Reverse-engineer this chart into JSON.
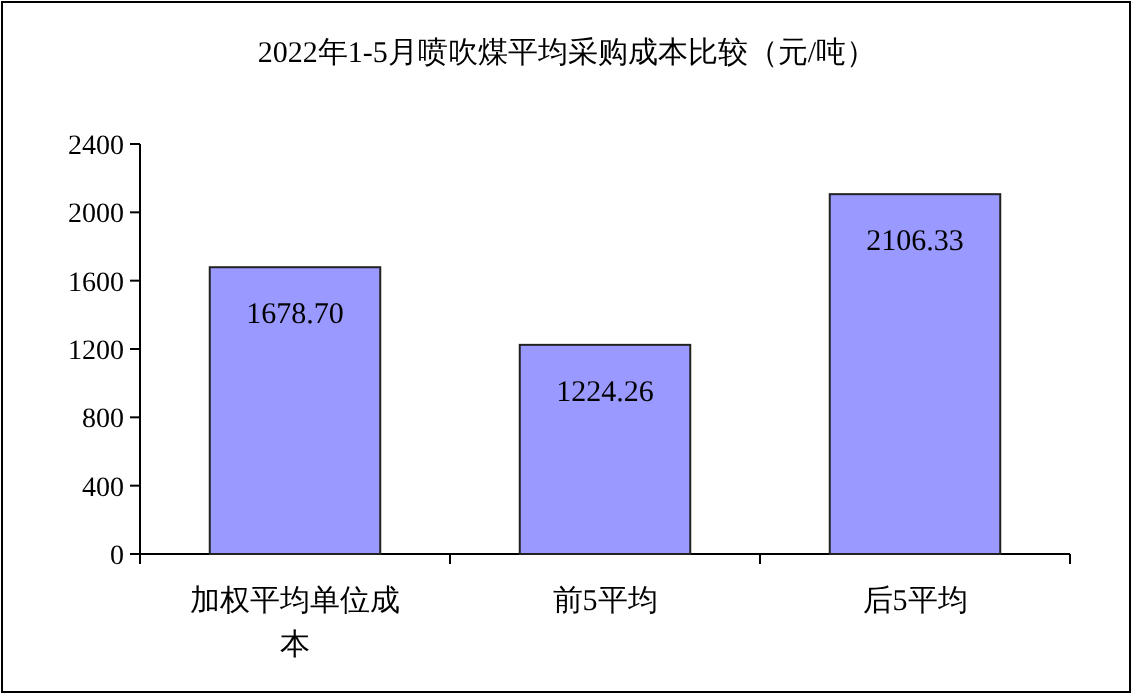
{
  "chart_data": {
    "type": "bar",
    "title": "2022年1-5月喷吹煤平均采购成本比较（元/吨）",
    "categories": [
      "加权平均单位成本",
      "前5平均",
      "后5平均"
    ],
    "values": [
      1678.7,
      1224.26,
      2106.33
    ],
    "value_labels": [
      "1678.70",
      "1224.26",
      "2106.33"
    ],
    "color": "#9999ff",
    "ylim": [
      0,
      2400
    ],
    "yticks": [
      0,
      400,
      800,
      1200,
      1600,
      2000,
      2400
    ],
    "grid": false
  }
}
